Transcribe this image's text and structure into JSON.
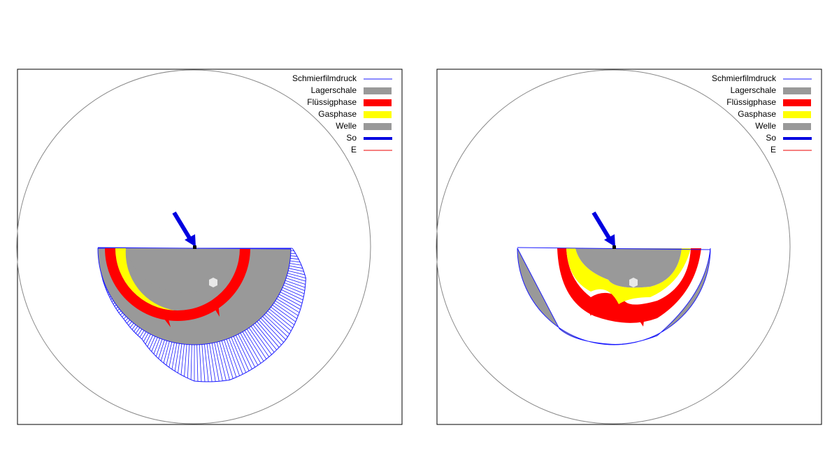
{
  "panels": [
    {
      "legend": [
        "Schmierfilmdruck",
        "Lagerschale",
        "Flüssigphase",
        "Gasphase",
        "Welle",
        "So",
        "E"
      ]
    },
    {
      "legend": [
        "Schmierfilmdruck",
        "Lagerschale",
        "Flüssigphase",
        "Gasphase",
        "Welle",
        "So",
        "E"
      ]
    }
  ]
}
